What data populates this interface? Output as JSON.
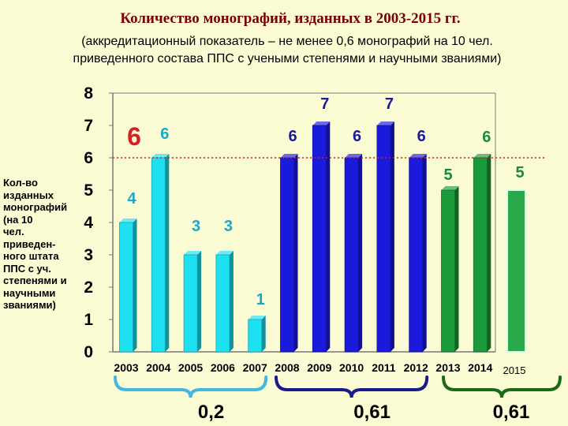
{
  "title": "Количество монографий, изданных  в 2003-2015 гг.",
  "subtitle_lines": [
    "(аккредитационный показатель – не менее 0,6 монографий на 10 чел.",
    "приведенного состава ППС с учеными степенями и научными званиями)"
  ],
  "ylabel_lines": [
    "Кол-во",
    "изданных",
    "монографий",
    "(на 10",
    "чел.",
    "приведен-",
    "ного штата",
    "ППС с уч.",
    "степенями и",
    "научными",
    "званиями)"
  ],
  "colors": {
    "background": "#fcfcd4",
    "cyan": "#1de0f0",
    "blue": "#1a1adc",
    "green": "#1a9a3a",
    "label_cyan": "#1aa8c8",
    "label_blue": "#1a1a9a",
    "label_green": "#1a8a3a",
    "threshold": "#d42020",
    "brace_cyan": "#40b8e0",
    "brace_blue": "#1a1a8a",
    "brace_green": "#1a6a1a"
  },
  "chart_data": {
    "type": "bar",
    "categories": [
      "2003",
      "2004",
      "2005",
      "2006",
      "2007",
      "2008",
      "2009",
      "2010",
      "2011",
      "2012",
      "2013",
      "2014",
      "2015"
    ],
    "values": [
      4,
      6,
      3,
      3,
      1,
      6,
      7,
      6,
      7,
      6,
      5,
      6,
      5
    ],
    "value_labels": [
      "4",
      "6",
      "3",
      "3",
      "1",
      "6",
      "7",
      "6",
      "7",
      "6",
      "5",
      "6",
      "5"
    ],
    "groups": [
      "cyan",
      "cyan",
      "cyan",
      "cyan",
      "cyan",
      "blue",
      "blue",
      "blue",
      "blue",
      "blue",
      "green",
      "green",
      "green"
    ],
    "ylim": [
      0,
      8
    ],
    "yticks": [
      "0",
      "1",
      "2",
      "3",
      "4",
      "5",
      "6",
      "7",
      "8"
    ],
    "threshold": {
      "value": 6,
      "label": "6"
    },
    "grid": false,
    "group_averages": [
      {
        "label": "0,2",
        "from": "2003",
        "to": "2007",
        "color_key": "brace_cyan"
      },
      {
        "label": "0,61",
        "from": "2008",
        "to": "2012",
        "color_key": "brace_blue"
      },
      {
        "label": "0,61",
        "from": "2013",
        "to": "2015",
        "color_key": "brace_green"
      }
    ]
  }
}
